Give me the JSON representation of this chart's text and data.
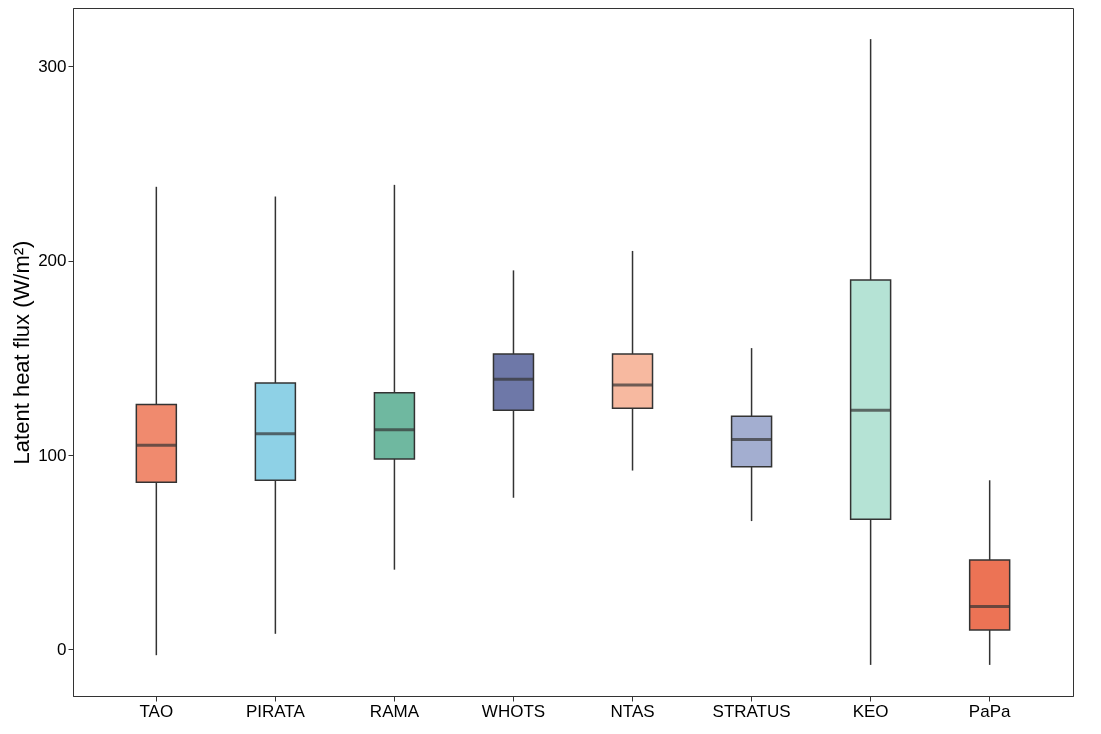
{
  "chart_data": {
    "type": "box",
    "ylabel": "Latent heat flux (W/m²)",
    "categories": [
      "TAO",
      "PIRATA",
      "RAMA",
      "WHOTS",
      "NTAS",
      "STRATUS",
      "KEO",
      "PaPa"
    ],
    "colors": [
      "#f08a6e",
      "#8ed1e6",
      "#6fb8a0",
      "#6e78a8",
      "#f7b9a0",
      "#a3aed0",
      "#b5e3d5",
      "#ec7355"
    ],
    "boxes": [
      {
        "low": -3,
        "q1": 86,
        "median": 105,
        "q3": 126,
        "high": 238
      },
      {
        "low": 8,
        "q1": 87,
        "median": 111,
        "q3": 137,
        "high": 233
      },
      {
        "low": 41,
        "q1": 98,
        "median": 113,
        "q3": 132,
        "high": 239
      },
      {
        "low": 78,
        "q1": 123,
        "median": 139,
        "q3": 152,
        "high": 195
      },
      {
        "low": 92,
        "q1": 124,
        "median": 136,
        "q3": 152,
        "high": 205
      },
      {
        "low": 66,
        "q1": 94,
        "median": 108,
        "q3": 120,
        "high": 155
      },
      {
        "low": -8,
        "q1": 67,
        "median": 123,
        "q3": 190,
        "high": 314
      },
      {
        "low": -8,
        "q1": 10,
        "median": 22,
        "q3": 46,
        "high": 87
      }
    ],
    "ylim": [
      -24,
      330
    ],
    "yticks": [
      0,
      100,
      200,
      300
    ],
    "grid": false
  }
}
